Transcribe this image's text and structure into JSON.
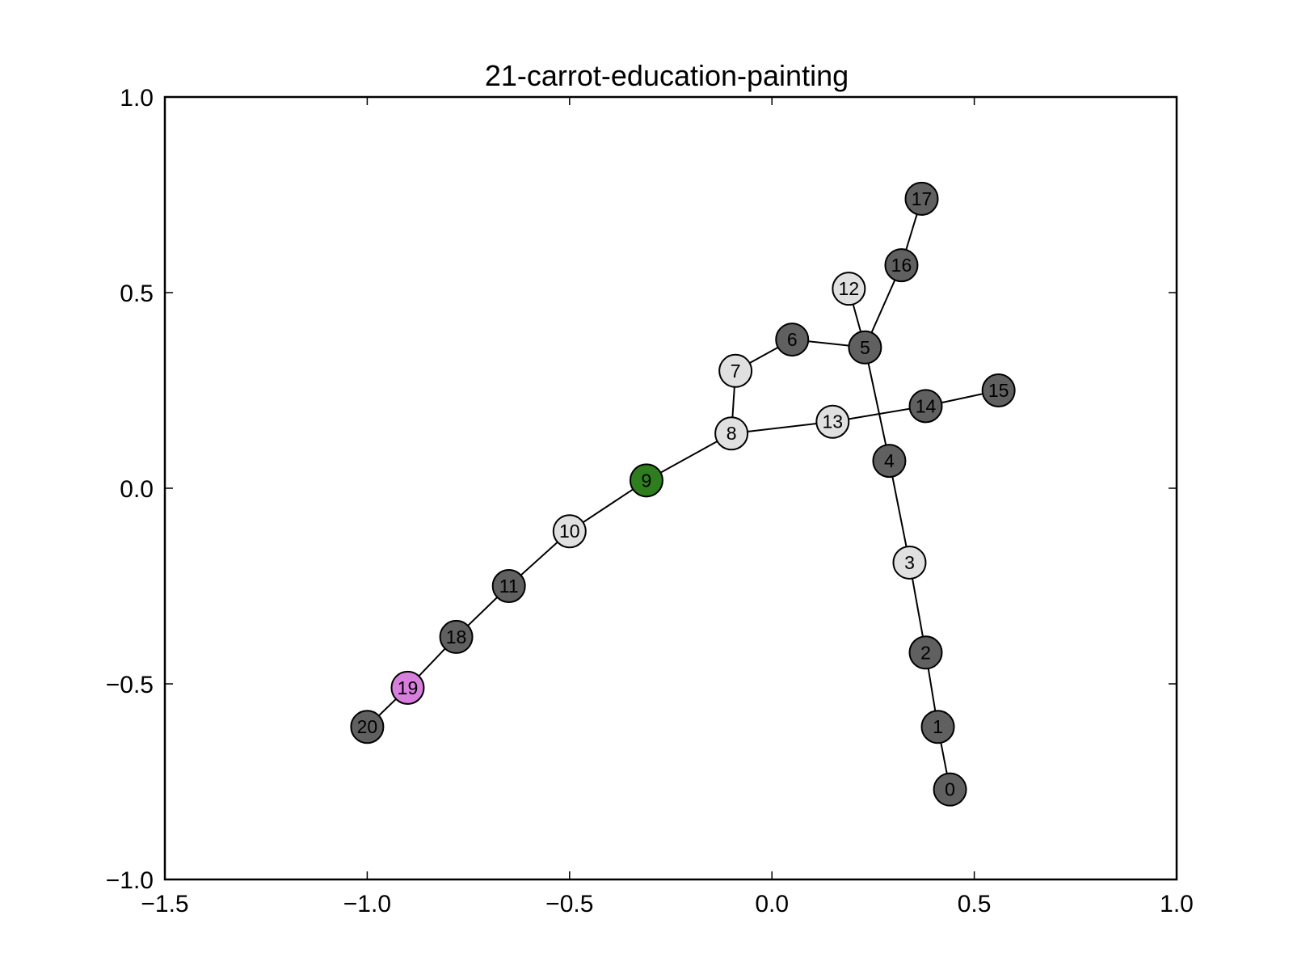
{
  "chart_data": {
    "type": "scatter",
    "title": "21-carrot-education-painting",
    "xlabel": "",
    "ylabel": "",
    "xlim": [
      -1.5,
      1.0
    ],
    "ylim": [
      -1.0,
      1.0
    ],
    "grid": false,
    "x_ticks": [
      -1.5,
      -1.0,
      -0.5,
      0.0,
      0.5,
      1.0
    ],
    "x_tick_labels": [
      "−1.5",
      "−1.0",
      "−0.5",
      "0.0",
      "0.5",
      "1.0"
    ],
    "y_ticks": [
      -1.0,
      -0.5,
      0.0,
      0.5,
      1.0
    ],
    "y_tick_labels": [
      "−1.0",
      "−0.5",
      "0.0",
      "0.5",
      "1.0"
    ],
    "colors": {
      "dark": "#606060",
      "light": "#e0e0e0",
      "green": "#2e7d1e",
      "violet": "#d77fdc"
    },
    "nodes": [
      {
        "id": "0",
        "x": 0.44,
        "y": -0.77,
        "color": "dark"
      },
      {
        "id": "1",
        "x": 0.41,
        "y": -0.61,
        "color": "dark"
      },
      {
        "id": "2",
        "x": 0.38,
        "y": -0.42,
        "color": "dark"
      },
      {
        "id": "3",
        "x": 0.34,
        "y": -0.19,
        "color": "light"
      },
      {
        "id": "4",
        "x": 0.29,
        "y": 0.07,
        "color": "dark"
      },
      {
        "id": "5",
        "x": 0.23,
        "y": 0.36,
        "color": "dark"
      },
      {
        "id": "6",
        "x": 0.05,
        "y": 0.38,
        "color": "dark"
      },
      {
        "id": "7",
        "x": -0.09,
        "y": 0.3,
        "color": "light"
      },
      {
        "id": "8",
        "x": -0.1,
        "y": 0.14,
        "color": "light"
      },
      {
        "id": "9",
        "x": -0.31,
        "y": 0.02,
        "color": "green"
      },
      {
        "id": "10",
        "x": -0.5,
        "y": -0.11,
        "color": "light"
      },
      {
        "id": "11",
        "x": -0.65,
        "y": -0.25,
        "color": "dark"
      },
      {
        "id": "12",
        "x": 0.19,
        "y": 0.51,
        "color": "light"
      },
      {
        "id": "13",
        "x": 0.15,
        "y": 0.17,
        "color": "light"
      },
      {
        "id": "14",
        "x": 0.38,
        "y": 0.21,
        "color": "dark"
      },
      {
        "id": "15",
        "x": 0.56,
        "y": 0.25,
        "color": "dark"
      },
      {
        "id": "16",
        "x": 0.32,
        "y": 0.57,
        "color": "dark"
      },
      {
        "id": "17",
        "x": 0.37,
        "y": 0.74,
        "color": "dark"
      },
      {
        "id": "18",
        "x": -0.78,
        "y": -0.38,
        "color": "dark"
      },
      {
        "id": "19",
        "x": -0.9,
        "y": -0.51,
        "color": "violet"
      },
      {
        "id": "20",
        "x": -1.0,
        "y": -0.61,
        "color": "dark"
      }
    ],
    "edges": [
      [
        "0",
        "1"
      ],
      [
        "1",
        "2"
      ],
      [
        "2",
        "3"
      ],
      [
        "3",
        "4"
      ],
      [
        "4",
        "5"
      ],
      [
        "5",
        "6"
      ],
      [
        "6",
        "7"
      ],
      [
        "7",
        "8"
      ],
      [
        "8",
        "9"
      ],
      [
        "9",
        "10"
      ],
      [
        "10",
        "11"
      ],
      [
        "11",
        "18"
      ],
      [
        "18",
        "19"
      ],
      [
        "19",
        "20"
      ],
      [
        "5",
        "12"
      ],
      [
        "5",
        "16"
      ],
      [
        "16",
        "17"
      ],
      [
        "8",
        "13"
      ],
      [
        "13",
        "14"
      ],
      [
        "14",
        "15"
      ]
    ]
  }
}
